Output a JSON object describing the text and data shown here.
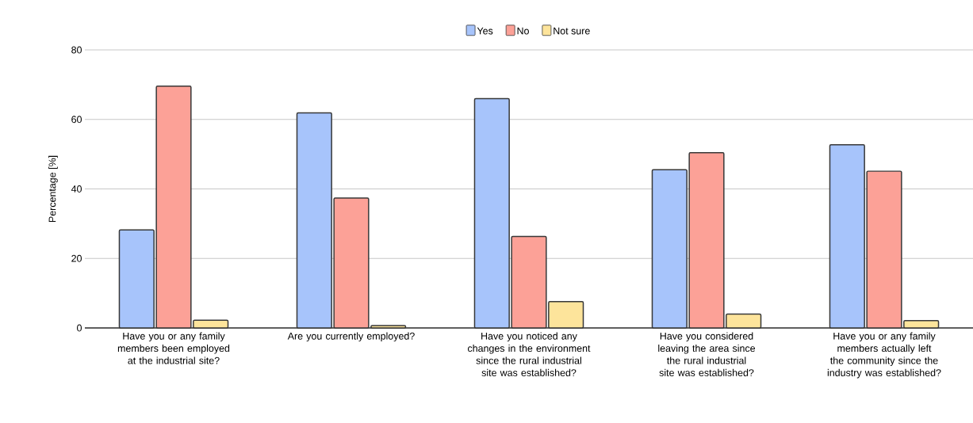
{
  "chart_data": {
    "type": "bar",
    "ylabel": "Percentage [%]",
    "categories": [
      "Have you or any family members been employed at the industrial site?",
      "Are you currently employed?",
      "Have you noticed any changes in the environment since the rural industrial site was established?",
      "Have you considered leaving the area since the rural industrial site was established?",
      "Have you or any family members actually left the community since the industry was established?"
    ],
    "series": [
      {
        "name": "Yes",
        "color": "#a7c4fb",
        "values": [
          28.2,
          61.9,
          66.0,
          45.5,
          52.7
        ]
      },
      {
        "name": "No",
        "color": "#fca197",
        "values": [
          69.6,
          37.4,
          26.3,
          50.4,
          45.1
        ]
      },
      {
        "name": "Not sure",
        "color": "#fde49b",
        "values": [
          2.2,
          0.7,
          7.6,
          4.0,
          2.1
        ]
      }
    ],
    "ylim": [
      0,
      80
    ],
    "yticks": [
      0,
      20,
      40,
      60,
      80
    ],
    "grid": "y",
    "legend": "top"
  }
}
